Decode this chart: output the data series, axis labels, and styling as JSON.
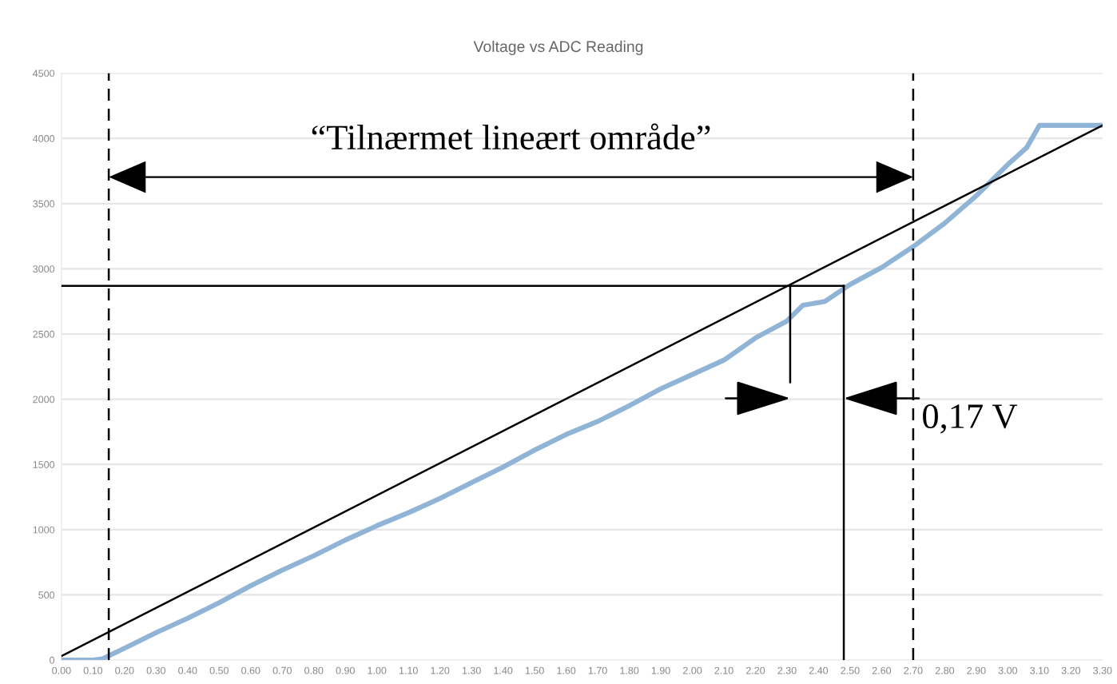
{
  "chart_data": {
    "type": "line",
    "title": "Voltage vs ADC Reading",
    "series": [
      {
        "color": "#8fb4d6",
        "x": [
          0,
          0.1,
          0.13,
          0.2,
          0.3,
          0.4,
          0.5,
          0.6,
          0.7,
          0.8,
          0.9,
          1.0,
          1.1,
          1.2,
          1.3,
          1.4,
          1.5,
          1.6,
          1.7,
          1.8,
          1.9,
          2.0,
          2.1,
          2.2,
          2.3,
          2.35,
          2.42,
          2.5,
          2.6,
          2.7,
          2.8,
          2.9,
          3.0,
          3.06,
          3.1,
          3.3
        ],
        "values": [
          0,
          0,
          10,
          90,
          210,
          320,
          440,
          570,
          690,
          800,
          920,
          1030,
          1130,
          1240,
          1360,
          1480,
          1610,
          1730,
          1830,
          1950,
          2080,
          2190,
          2300,
          2470,
          2600,
          2720,
          2750,
          2880,
          3010,
          3170,
          3350,
          3560,
          3800,
          3930,
          4100,
          4100
        ]
      },
      {
        "color": "#000000",
        "x": [
          0,
          3.3
        ],
        "values": [
          30,
          4100
        ]
      },
      {
        "color": "#000000",
        "x": [
          0,
          2.48
        ],
        "values": [
          2870,
          2870
        ]
      },
      {
        "color": "#000000",
        "x": [
          2.48,
          2.48
        ],
        "values": [
          2870,
          0
        ]
      },
      {
        "color": "#000000",
        "x": [
          2.31,
          2.31
        ],
        "values": [
          2870,
          2130
        ]
      }
    ],
    "ref_lines": [
      {
        "axis": "x",
        "value": 0.15,
        "color": "#000000",
        "line_style": "dashed"
      },
      {
        "axis": "x",
        "value": 2.7,
        "color": "#000000",
        "line_style": "dashed"
      }
    ],
    "annotations": [
      "“Tilnærmet lineært område”",
      "0,17 V"
    ],
    "xlim": [
      0,
      3.3
    ],
    "xticks": [
      {
        "value": 0,
        "label": "0.00"
      },
      {
        "value": 0.1,
        "label": "0.10"
      },
      {
        "value": 0.2,
        "label": "0.20"
      },
      {
        "value": 0.3,
        "label": "0.30"
      },
      {
        "value": 0.4,
        "label": "0.40"
      },
      {
        "value": 0.5,
        "label": "0.50"
      },
      {
        "value": 0.6,
        "label": "0.60"
      },
      {
        "value": 0.7,
        "label": "0.70"
      },
      {
        "value": 0.8,
        "label": "0.80"
      },
      {
        "value": 0.9,
        "label": "0.90"
      },
      {
        "value": 1.0,
        "label": "1.00"
      },
      {
        "value": 1.1,
        "label": "1.10"
      },
      {
        "value": 1.2,
        "label": "1.20"
      },
      {
        "value": 1.3,
        "label": "1.30"
      },
      {
        "value": 1.4,
        "label": "1.40"
      },
      {
        "value": 1.5,
        "label": "1.50"
      },
      {
        "value": 1.6,
        "label": "1.60"
      },
      {
        "value": 1.7,
        "label": "1.70"
      },
      {
        "value": 1.8,
        "label": "1.80"
      },
      {
        "value": 1.9,
        "label": "1.90"
      },
      {
        "value": 2.0,
        "label": "2.00"
      },
      {
        "value": 2.1,
        "label": "2.10"
      },
      {
        "value": 2.2,
        "label": "2.20"
      },
      {
        "value": 2.3,
        "label": "2.30"
      },
      {
        "value": 2.4,
        "label": "2.40"
      },
      {
        "value": 2.5,
        "label": "2.50"
      },
      {
        "value": 2.6,
        "label": "2.60"
      },
      {
        "value": 2.7,
        "label": "2.70"
      },
      {
        "value": 2.8,
        "label": "2.80"
      },
      {
        "value": 2.9,
        "label": "2.90"
      },
      {
        "value": 3.0,
        "label": "3.00"
      },
      {
        "value": 3.1,
        "label": "3.10"
      },
      {
        "value": 3.2,
        "label": "3.20"
      },
      {
        "value": 3.3,
        "label": "3.30"
      }
    ],
    "ylim": [
      0,
      4500
    ],
    "yticks": [
      0,
      500,
      1000,
      1500,
      2000,
      2500,
      3000,
      3500,
      4000,
      4500
    ],
    "grid": "y",
    "legend": false,
    "marker": "none",
    "line_style": "solid"
  }
}
